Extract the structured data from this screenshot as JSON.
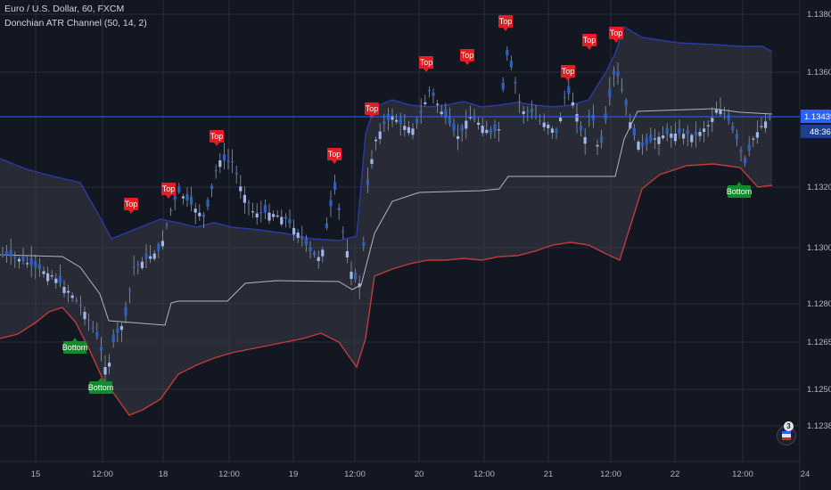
{
  "header": {
    "title": "Euro / U.S. Dollar, 60, FXCM",
    "indicator": "Donchian ATR Channel (50, 14, 2)"
  },
  "colors": {
    "background": "#131722",
    "grid": "#2a2e39",
    "candle": "#2f5fbf",
    "candle_wick": "#8e96a8",
    "top_band": "#2b3aa8",
    "bottom_band": "#c23b3b",
    "fill": "#3a3d46",
    "mid_line": "#b2b5be",
    "price_line": "#2962ff",
    "top_flag": "#e51c23",
    "bottom_flag": "#138a2c"
  },
  "price_axis": {
    "ticks": [
      "1.13800",
      "1.13600",
      "1.13400",
      "1.13200",
      "1.13000",
      "1.12800",
      "1.12650",
      "1.12500",
      "1.12380"
    ],
    "current_price": "1.13439",
    "countdown": "48:36"
  },
  "time_axis": {
    "ticks": [
      "15",
      "12:00",
      "18",
      "12:00",
      "19",
      "12:00",
      "20",
      "12:00",
      "21",
      "12:00",
      "22",
      "12:00",
      "24"
    ]
  },
  "chart_data": {
    "type": "candlestick",
    "title": "Euro / U.S. Dollar, 60, FXCM",
    "y_tick_labels": [
      "1.13800",
      "1.13600",
      "1.13400",
      "1.13200",
      "1.13000",
      "1.12800",
      "1.12650",
      "1.12500",
      "1.12380"
    ],
    "x_tick_labels": [
      "15",
      "12:00",
      "18",
      "12:00",
      "19",
      "12:00",
      "20",
      "12:00",
      "21",
      "12:00",
      "22",
      "12:00",
      "24"
    ],
    "last_price": "1.13439",
    "labels": {
      "top": "Top",
      "bottom": "Bottom"
    },
    "top_signals_at": [
      "18 ~10:00",
      "18 ~12:00",
      "18 12:00",
      "19 ~10:00",
      "20 ~03:00",
      "20 ~12:00",
      "20 ~18:00",
      "21 ~03:00",
      "21 ~07:00",
      "21 ~09:00"
    ],
    "bottom_signals_at": [
      "15 ~08:00",
      "15 ~12:00",
      "22 ~12:00"
    ],
    "grid": true
  }
}
